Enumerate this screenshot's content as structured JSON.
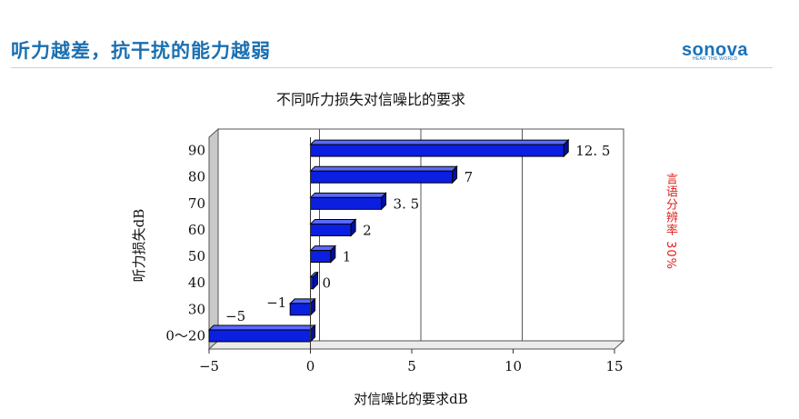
{
  "header": {
    "title": "听力越差，抗干扰的能力越弱",
    "brand_name": "sonova",
    "brand_tagline": "HEAR THE WORLD"
  },
  "side_note": "言语分辨率 30%",
  "colors": {
    "accent": "#1a6fb0",
    "bar": "#0a1fe0",
    "note": "#e0201a"
  },
  "chart_data": {
    "type": "bar",
    "orientation": "horizontal",
    "title": "不同听力损失对信噪比的要求",
    "xlabel": "对信噪比的要求dB",
    "ylabel": "听力损失dB",
    "categories": [
      "0～20",
      "30",
      "40",
      "50",
      "60",
      "70",
      "80",
      "90"
    ],
    "values": [
      -5,
      -1,
      0,
      1,
      2,
      3.5,
      7,
      12.5
    ],
    "value_labels": [
      "−5",
      "−1",
      "0",
      "1",
      "2",
      "3. 5",
      "7",
      "12. 5"
    ],
    "xlim": [
      -5,
      15
    ],
    "xticks": [
      -5,
      0,
      5,
      10,
      15
    ],
    "xtick_labels": [
      "−5",
      "0",
      "5",
      "10",
      "15"
    ],
    "grid": "vertical",
    "legend": "none"
  }
}
